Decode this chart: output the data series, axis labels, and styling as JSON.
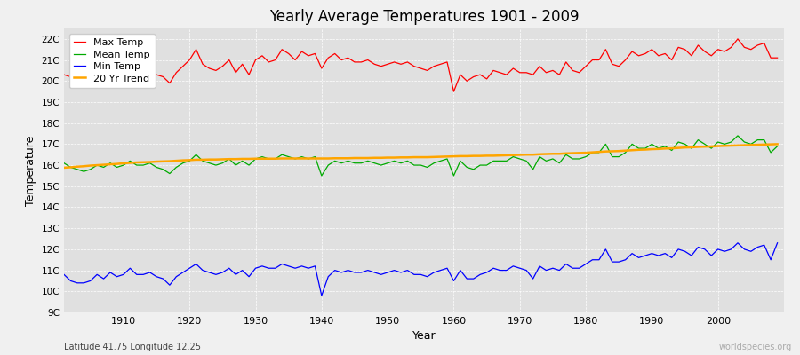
{
  "title": "Yearly Average Temperatures 1901 - 2009",
  "ylabel": "Temperature",
  "xlabel": "Year",
  "footnote_left": "Latitude 41.75 Longitude 12.25",
  "footnote_right": "worldspecies.org",
  "background_color": "#f0f0f0",
  "plot_bg_color": "#e0e0e0",
  "ylim": [
    9,
    22.5
  ],
  "yticks": [
    9,
    10,
    11,
    12,
    13,
    14,
    15,
    16,
    17,
    18,
    19,
    20,
    21,
    22
  ],
  "ytick_labels": [
    "9C",
    "10C",
    "11C",
    "12C",
    "13C",
    "14C",
    "15C",
    "16C",
    "17C",
    "18C",
    "19C",
    "20C",
    "21C",
    "22C"
  ],
  "xlim": [
    1901,
    2010
  ],
  "xticks": [
    1910,
    1920,
    1930,
    1940,
    1950,
    1960,
    1970,
    1980,
    1990,
    2000
  ],
  "line_colors": {
    "max": "#ff0000",
    "mean": "#00aa00",
    "min": "#0000ff",
    "trend": "#ffa500"
  },
  "legend_labels": [
    "Max Temp",
    "Mean Temp",
    "Min Temp",
    "20 Yr Trend"
  ],
  "years": [
    1901,
    1902,
    1903,
    1904,
    1905,
    1906,
    1907,
    1908,
    1909,
    1910,
    1911,
    1912,
    1913,
    1914,
    1915,
    1916,
    1917,
    1918,
    1919,
    1920,
    1921,
    1922,
    1923,
    1924,
    1925,
    1926,
    1927,
    1928,
    1929,
    1930,
    1931,
    1932,
    1933,
    1934,
    1935,
    1936,
    1937,
    1938,
    1939,
    1940,
    1941,
    1942,
    1943,
    1944,
    1945,
    1946,
    1947,
    1948,
    1949,
    1950,
    1951,
    1952,
    1953,
    1954,
    1955,
    1956,
    1957,
    1958,
    1959,
    1960,
    1961,
    1962,
    1963,
    1964,
    1965,
    1966,
    1967,
    1968,
    1969,
    1970,
    1971,
    1972,
    1973,
    1974,
    1975,
    1976,
    1977,
    1978,
    1979,
    1980,
    1981,
    1982,
    1983,
    1984,
    1985,
    1986,
    1987,
    1988,
    1989,
    1990,
    1991,
    1992,
    1993,
    1994,
    1995,
    1996,
    1997,
    1998,
    1999,
    2000,
    2001,
    2002,
    2003,
    2004,
    2005,
    2006,
    2007,
    2008,
    2009
  ],
  "max_temp": [
    20.3,
    20.2,
    20.1,
    20.0,
    20.1,
    20.5,
    20.3,
    20.6,
    20.2,
    20.4,
    21.0,
    20.5,
    20.5,
    20.7,
    20.3,
    20.2,
    19.9,
    20.4,
    20.7,
    21.0,
    21.5,
    20.8,
    20.6,
    20.5,
    20.7,
    21.0,
    20.4,
    20.8,
    20.3,
    21.0,
    21.2,
    20.9,
    21.0,
    21.5,
    21.3,
    21.0,
    21.4,
    21.2,
    21.3,
    20.6,
    21.1,
    21.3,
    21.0,
    21.1,
    20.9,
    20.9,
    21.0,
    20.8,
    20.7,
    20.8,
    20.9,
    20.8,
    20.9,
    20.7,
    20.6,
    20.5,
    20.7,
    20.8,
    20.9,
    19.5,
    20.3,
    20.0,
    20.2,
    20.3,
    20.1,
    20.5,
    20.4,
    20.3,
    20.6,
    20.4,
    20.4,
    20.3,
    20.7,
    20.4,
    20.5,
    20.3,
    20.9,
    20.5,
    20.4,
    20.7,
    21.0,
    21.0,
    21.5,
    20.8,
    20.7,
    21.0,
    21.4,
    21.2,
    21.3,
    21.5,
    21.2,
    21.3,
    21.0,
    21.6,
    21.5,
    21.2,
    21.7,
    21.4,
    21.2,
    21.5,
    21.4,
    21.6,
    22.0,
    21.6,
    21.5,
    21.7,
    21.8,
    21.1,
    21.1
  ],
  "mean_temp": [
    16.1,
    15.9,
    15.8,
    15.7,
    15.8,
    16.0,
    15.9,
    16.1,
    15.9,
    16.0,
    16.2,
    16.0,
    16.0,
    16.1,
    15.9,
    15.8,
    15.6,
    15.9,
    16.1,
    16.2,
    16.5,
    16.2,
    16.1,
    16.0,
    16.1,
    16.3,
    16.0,
    16.2,
    16.0,
    16.3,
    16.4,
    16.3,
    16.3,
    16.5,
    16.4,
    16.3,
    16.4,
    16.3,
    16.4,
    15.5,
    16.0,
    16.2,
    16.1,
    16.2,
    16.1,
    16.1,
    16.2,
    16.1,
    16.0,
    16.1,
    16.2,
    16.1,
    16.2,
    16.0,
    16.0,
    15.9,
    16.1,
    16.2,
    16.3,
    15.5,
    16.2,
    15.9,
    15.8,
    16.0,
    16.0,
    16.2,
    16.2,
    16.2,
    16.4,
    16.3,
    16.2,
    15.8,
    16.4,
    16.2,
    16.3,
    16.1,
    16.5,
    16.3,
    16.3,
    16.4,
    16.6,
    16.6,
    17.0,
    16.4,
    16.4,
    16.6,
    17.0,
    16.8,
    16.8,
    17.0,
    16.8,
    16.9,
    16.7,
    17.1,
    17.0,
    16.8,
    17.2,
    17.0,
    16.8,
    17.1,
    17.0,
    17.1,
    17.4,
    17.1,
    17.0,
    17.2,
    17.2,
    16.6,
    16.9
  ],
  "min_temp": [
    10.8,
    10.5,
    10.4,
    10.4,
    10.5,
    10.8,
    10.6,
    10.9,
    10.7,
    10.8,
    11.1,
    10.8,
    10.8,
    10.9,
    10.7,
    10.6,
    10.3,
    10.7,
    10.9,
    11.1,
    11.3,
    11.0,
    10.9,
    10.8,
    10.9,
    11.1,
    10.8,
    11.0,
    10.7,
    11.1,
    11.2,
    11.1,
    11.1,
    11.3,
    11.2,
    11.1,
    11.2,
    11.1,
    11.2,
    9.8,
    10.7,
    11.0,
    10.9,
    11.0,
    10.9,
    10.9,
    11.0,
    10.9,
    10.8,
    10.9,
    11.0,
    10.9,
    11.0,
    10.8,
    10.8,
    10.7,
    10.9,
    11.0,
    11.1,
    10.5,
    11.0,
    10.6,
    10.6,
    10.8,
    10.9,
    11.1,
    11.0,
    11.0,
    11.2,
    11.1,
    11.0,
    10.6,
    11.2,
    11.0,
    11.1,
    11.0,
    11.3,
    11.1,
    11.1,
    11.3,
    11.5,
    11.5,
    12.0,
    11.4,
    11.4,
    11.5,
    11.8,
    11.6,
    11.7,
    11.8,
    11.7,
    11.8,
    11.6,
    12.0,
    11.9,
    11.7,
    12.1,
    12.0,
    11.7,
    12.0,
    11.9,
    12.0,
    12.3,
    12.0,
    11.9,
    12.1,
    12.2,
    11.5,
    12.3
  ],
  "trend_temp": [
    15.88,
    15.9,
    15.93,
    15.95,
    15.98,
    16.0,
    16.02,
    16.04,
    16.06,
    16.09,
    16.11,
    16.13,
    16.14,
    16.15,
    16.17,
    16.18,
    16.19,
    16.21,
    16.23,
    16.24,
    16.26,
    16.26,
    16.27,
    16.27,
    16.28,
    16.29,
    16.29,
    16.3,
    16.3,
    16.31,
    16.31,
    16.31,
    16.31,
    16.32,
    16.32,
    16.32,
    16.32,
    16.32,
    16.32,
    16.32,
    16.32,
    16.33,
    16.33,
    16.33,
    16.34,
    16.34,
    16.34,
    16.35,
    16.35,
    16.36,
    16.36,
    16.37,
    16.37,
    16.38,
    16.38,
    16.38,
    16.39,
    16.4,
    16.41,
    16.42,
    16.43,
    16.43,
    16.44,
    16.44,
    16.45,
    16.45,
    16.46,
    16.47,
    16.48,
    16.49,
    16.5,
    16.5,
    16.52,
    16.53,
    16.54,
    16.54,
    16.56,
    16.57,
    16.58,
    16.59,
    16.61,
    16.63,
    16.65,
    16.66,
    16.67,
    16.69,
    16.71,
    16.73,
    16.74,
    16.76,
    16.77,
    16.79,
    16.8,
    16.82,
    16.84,
    16.85,
    16.87,
    16.88,
    16.89,
    16.91,
    16.92,
    16.93,
    16.94,
    16.95,
    16.96,
    16.97,
    16.98,
    16.99,
    17.0
  ]
}
